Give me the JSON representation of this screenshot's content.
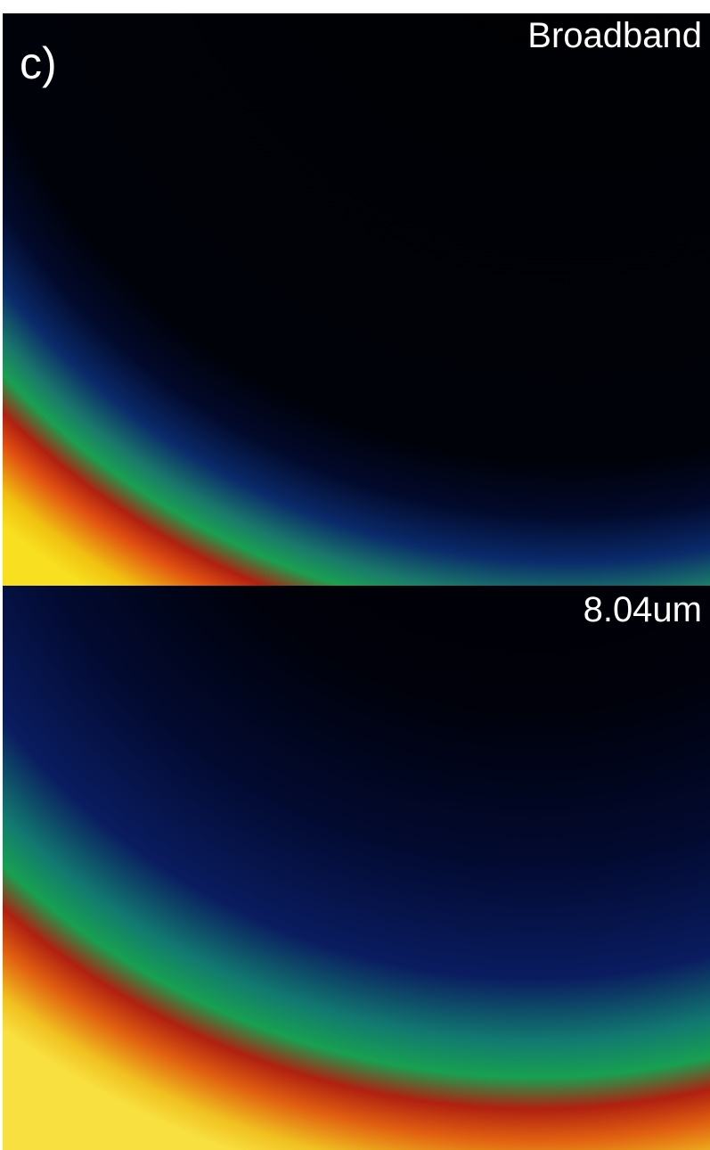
{
  "panel_label": "c)",
  "panels": [
    {
      "label": "Broadband"
    },
    {
      "label": "8.04um"
    }
  ]
}
